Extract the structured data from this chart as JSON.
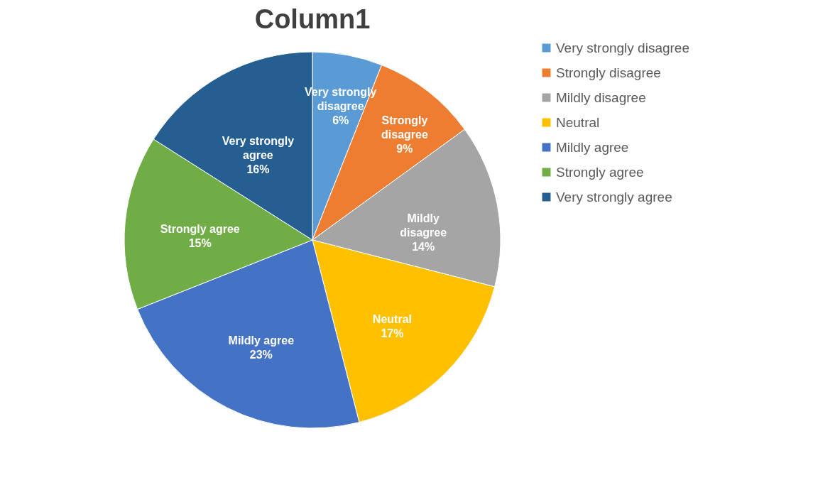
{
  "chart_data": {
    "type": "pie",
    "title": "Column1",
    "categories": [
      "Very strongly disagree",
      "Strongly disagree",
      "Mildly disagree",
      "Neutral",
      "Mildly agree",
      "Strongly agree",
      "Very strongly agree"
    ],
    "values": [
      6,
      9,
      14,
      17,
      23,
      15,
      16
    ],
    "value_labels": [
      "6%",
      "9%",
      "14%",
      "17%",
      "23%",
      "15%",
      "16%"
    ],
    "colors": [
      "#5b9bd5",
      "#ed7d31",
      "#a5a5a5",
      "#ffc000",
      "#4472c4",
      "#70ad47",
      "#255e91"
    ],
    "legend": "right"
  }
}
